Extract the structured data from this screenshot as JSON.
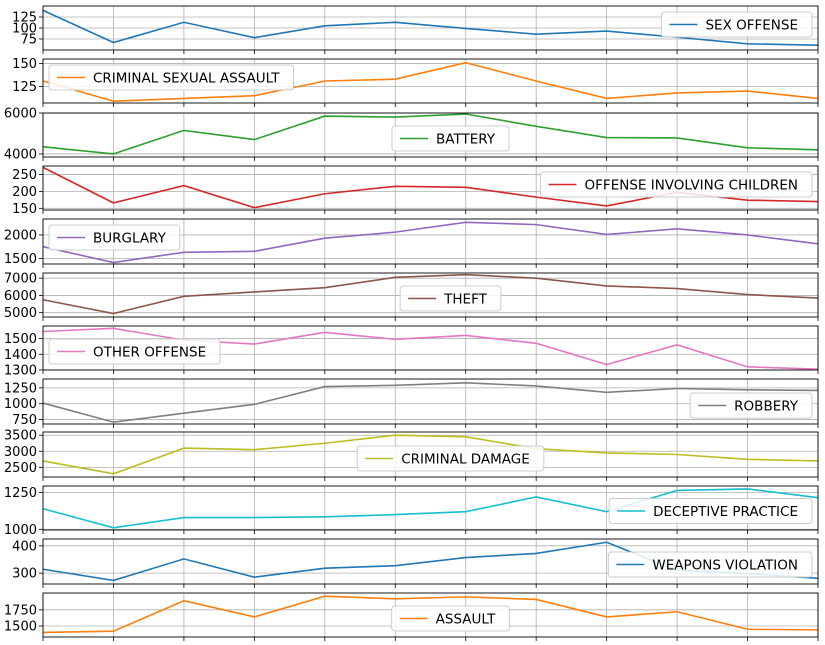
{
  "chart_data": {
    "type": "line",
    "layout": "stacked-subplots",
    "x_points": 12,
    "grid": true,
    "panels": [
      {
        "name": "SEX OFFENSE",
        "color": "#1f77b4",
        "values": [
          140,
          67,
          113,
          78,
          105,
          113,
          99,
          86,
          93,
          79,
          64,
          61
        ],
        "ylim": [
          50,
          150
        ],
        "yticks": [
          75,
          100,
          125
        ],
        "legend": "top-right"
      },
      {
        "name": "CRIMINAL SEXUAL ASSAULT",
        "color": "#ff7f0e",
        "values": [
          131,
          109,
          112,
          115,
          131,
          133,
          151,
          131,
          112,
          118,
          120,
          112
        ],
        "ylim": [
          107,
          155
        ],
        "yticks": [
          125,
          150
        ],
        "legend": "top-left"
      },
      {
        "name": "BATTERY",
        "color": "#2ca02c",
        "values": [
          4350,
          4000,
          5150,
          4700,
          5850,
          5800,
          5950,
          5350,
          4800,
          4780,
          4300,
          4200
        ],
        "ylim": [
          3850,
          6000
        ],
        "yticks": [
          4000,
          6000
        ],
        "legend": "bottom-center"
      },
      {
        "name": "OFFENSE INVOLVING CHILDREN",
        "color": "#d62728",
        "values": [
          271,
          166,
          217,
          152,
          193,
          215,
          212,
          183,
          157,
          197,
          174,
          170
        ],
        "ylim": [
          145,
          275
        ],
        "yticks": [
          150,
          200,
          250
        ],
        "legend": "top-right"
      },
      {
        "name": "BURGLARY",
        "color": "#9467bd",
        "values": [
          1750,
          1410,
          1630,
          1650,
          1930,
          2060,
          2270,
          2220,
          2010,
          2130,
          2000,
          1810
        ],
        "ylim": [
          1380,
          2340
        ],
        "yticks": [
          1500,
          2000
        ],
        "legend": "top-left"
      },
      {
        "name": "THEFT",
        "color": "#8c564b",
        "values": [
          5750,
          4950,
          5950,
          6200,
          6450,
          7050,
          7200,
          7000,
          6550,
          6400,
          6050,
          5850
        ],
        "ylim": [
          4750,
          7300
        ],
        "yticks": [
          5000,
          6000,
          7000
        ],
        "legend": "bottom-center"
      },
      {
        "name": "OTHER OFFENSE",
        "color": "#e377c2",
        "values": [
          1545,
          1565,
          1490,
          1465,
          1540,
          1495,
          1520,
          1470,
          1335,
          1460,
          1320,
          1305
        ],
        "ylim": [
          1300,
          1580
        ],
        "yticks": [
          1300,
          1400,
          1500
        ],
        "legend": "bottom-left"
      },
      {
        "name": "ROBBERY",
        "color": "#7f7f7f",
        "values": [
          1010,
          710,
          850,
          990,
          1270,
          1290,
          1330,
          1280,
          1180,
          1240,
          1220,
          1210
        ],
        "ylim": [
          680,
          1390
        ],
        "yticks": [
          750,
          1000,
          1250
        ],
        "legend": "bottom-right"
      },
      {
        "name": "CRIMINAL DAMAGE",
        "color": "#bcbd22",
        "values": [
          2700,
          2300,
          3100,
          3050,
          3250,
          3500,
          3450,
          3080,
          2950,
          2900,
          2750,
          2700
        ],
        "ylim": [
          2200,
          3600
        ],
        "yticks": [
          2500,
          3000,
          3500
        ],
        "legend": "bottom-center"
      },
      {
        "name": "DECEPTIVE PRACTICE",
        "color": "#17becf",
        "values": [
          1140,
          1010,
          1080,
          1080,
          1085,
          1100,
          1120,
          1220,
          1120,
          1265,
          1275,
          1215
        ],
        "ylim": [
          995,
          1295
        ],
        "yticks": [
          1000,
          1250
        ],
        "legend": "right"
      },
      {
        "name": "WEAPONS VIOLATION",
        "color": "#1f77b4",
        "values": [
          314,
          273,
          352,
          285,
          318,
          327,
          357,
          372,
          413,
          310,
          298,
          281
        ],
        "ylim": [
          260,
          425
        ],
        "yticks": [
          300,
          400
        ],
        "legend": "right"
      },
      {
        "name": "ASSAULT",
        "color": "#ff7f0e",
        "values": [
          1400,
          1420,
          1890,
          1640,
          1960,
          1920,
          1950,
          1910,
          1640,
          1720,
          1450,
          1440
        ],
        "ylim": [
          1330,
          2010
        ],
        "yticks": [
          1500,
          1750
        ],
        "legend": "bottom-center"
      }
    ]
  }
}
